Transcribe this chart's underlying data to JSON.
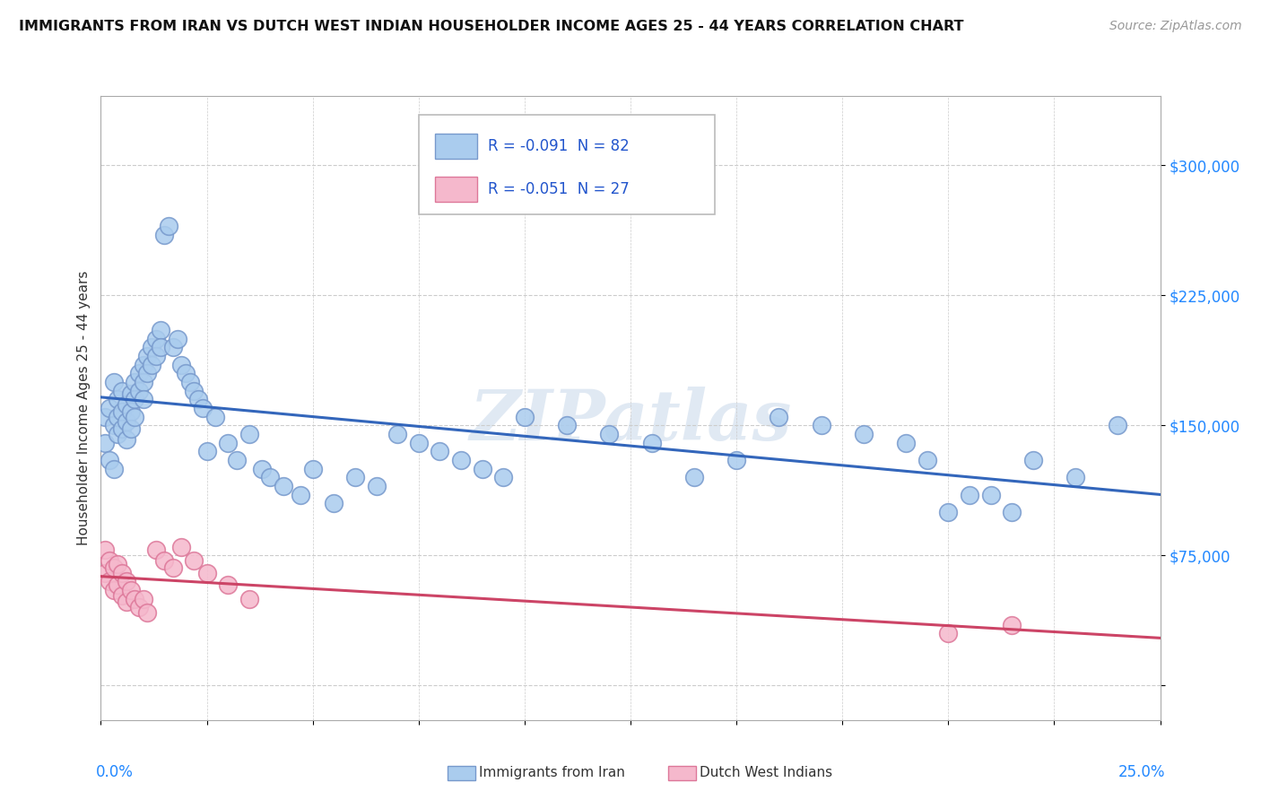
{
  "title": "IMMIGRANTS FROM IRAN VS DUTCH WEST INDIAN HOUSEHOLDER INCOME AGES 25 - 44 YEARS CORRELATION CHART",
  "source": "Source: ZipAtlas.com",
  "ylabel": "Householder Income Ages 25 - 44 years",
  "xlim": [
    0.0,
    0.25
  ],
  "ylim": [
    -20000,
    340000
  ],
  "yticks": [
    0,
    75000,
    150000,
    225000,
    300000
  ],
  "ytick_labels": [
    "",
    "$75,000",
    "$150,000",
    "$225,000",
    "$300,000"
  ],
  "iran_color": "#aaccee",
  "iran_edge_color": "#7799cc",
  "dwi_color": "#f5b8cc",
  "dwi_edge_color": "#dd7799",
  "iran_line_color": "#3366bb",
  "dwi_line_color": "#cc4466",
  "legend_R_iran": "R = -0.091",
  "legend_N_iran": "N = 82",
  "legend_R_dwi": "R = -0.051",
  "legend_N_dwi": "N = 27",
  "legend_label_iran": "Immigrants from Iran",
  "legend_label_dwi": "Dutch West Indians",
  "watermark": "ZIPatlas",
  "iran_x": [
    0.001,
    0.001,
    0.002,
    0.002,
    0.003,
    0.003,
    0.003,
    0.004,
    0.004,
    0.004,
    0.005,
    0.005,
    0.005,
    0.006,
    0.006,
    0.006,
    0.007,
    0.007,
    0.007,
    0.008,
    0.008,
    0.008,
    0.009,
    0.009,
    0.01,
    0.01,
    0.01,
    0.011,
    0.011,
    0.012,
    0.012,
    0.013,
    0.013,
    0.014,
    0.014,
    0.015,
    0.016,
    0.017,
    0.018,
    0.019,
    0.02,
    0.021,
    0.022,
    0.023,
    0.024,
    0.025,
    0.027,
    0.03,
    0.032,
    0.035,
    0.038,
    0.04,
    0.043,
    0.047,
    0.05,
    0.055,
    0.06,
    0.065,
    0.07,
    0.075,
    0.08,
    0.085,
    0.09,
    0.095,
    0.1,
    0.11,
    0.12,
    0.13,
    0.14,
    0.15,
    0.16,
    0.17,
    0.18,
    0.19,
    0.2,
    0.21,
    0.22,
    0.23,
    0.24,
    0.215,
    0.205,
    0.195
  ],
  "iran_y": [
    155000,
    140000,
    160000,
    130000,
    175000,
    150000,
    125000,
    165000,
    145000,
    155000,
    170000,
    158000,
    148000,
    162000,
    152000,
    142000,
    168000,
    158000,
    148000,
    175000,
    165000,
    155000,
    180000,
    170000,
    185000,
    175000,
    165000,
    190000,
    180000,
    195000,
    185000,
    200000,
    190000,
    205000,
    195000,
    260000,
    265000,
    195000,
    200000,
    185000,
    180000,
    175000,
    170000,
    165000,
    160000,
    135000,
    155000,
    140000,
    130000,
    145000,
    125000,
    120000,
    115000,
    110000,
    125000,
    105000,
    120000,
    115000,
    145000,
    140000,
    135000,
    130000,
    125000,
    120000,
    155000,
    150000,
    145000,
    140000,
    120000,
    130000,
    155000,
    150000,
    145000,
    140000,
    100000,
    110000,
    130000,
    120000,
    150000,
    100000,
    110000,
    130000
  ],
  "dwi_x": [
    0.001,
    0.001,
    0.002,
    0.002,
    0.003,
    0.003,
    0.004,
    0.004,
    0.005,
    0.005,
    0.006,
    0.006,
    0.007,
    0.008,
    0.009,
    0.01,
    0.011,
    0.013,
    0.015,
    0.017,
    0.019,
    0.022,
    0.025,
    0.03,
    0.035,
    0.2,
    0.215
  ],
  "dwi_y": [
    78000,
    65000,
    72000,
    60000,
    68000,
    55000,
    70000,
    58000,
    65000,
    52000,
    60000,
    48000,
    55000,
    50000,
    45000,
    50000,
    42000,
    78000,
    72000,
    68000,
    80000,
    72000,
    65000,
    58000,
    50000,
    30000,
    35000
  ]
}
